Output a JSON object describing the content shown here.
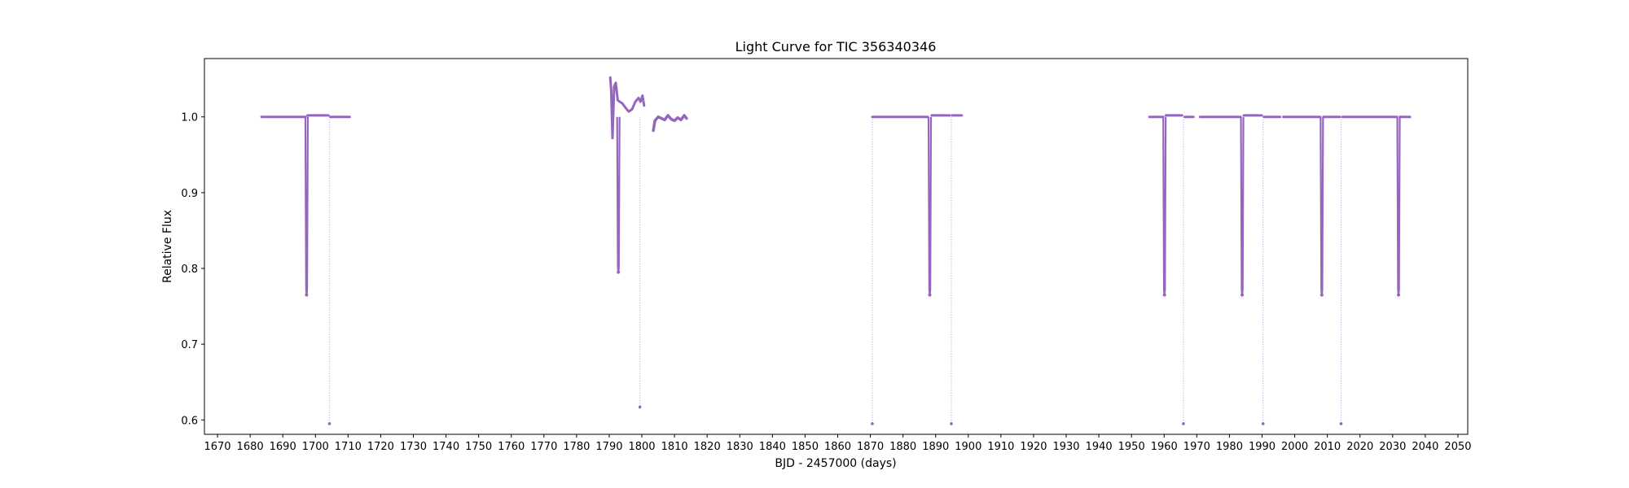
{
  "chart_data": {
    "type": "scatter",
    "title": "Light Curve for TIC 356340346",
    "xlabel": "BJD - 2457000 (days)",
    "ylabel": "Relative Flux",
    "xlim": [
      1666,
      2053
    ],
    "ylim": [
      0.581,
      1.077
    ],
    "xticks": [
      1670,
      1680,
      1690,
      1700,
      1710,
      1720,
      1730,
      1740,
      1750,
      1760,
      1770,
      1780,
      1790,
      1800,
      1810,
      1820,
      1830,
      1840,
      1850,
      1860,
      1870,
      1880,
      1890,
      1900,
      1910,
      1920,
      1930,
      1940,
      1950,
      1960,
      1970,
      1980,
      1990,
      2000,
      2010,
      2020,
      2030,
      2040,
      2050
    ],
    "yticks": [
      0.6,
      0.7,
      0.8,
      0.9,
      1.0
    ],
    "ytick_labels": [
      "0.6",
      "0.7",
      "0.8",
      "0.9",
      "1.0"
    ],
    "grid": false,
    "color": "#9467bd",
    "baseline_segments": [
      {
        "x": [
          1683.5,
          1697.0
        ],
        "y": 1.0
      },
      {
        "x": [
          1697.6,
          1704.0
        ],
        "y": 1.002
      },
      {
        "x": [
          1704.6,
          1710.5
        ],
        "y": 1.0
      },
      {
        "x": [
          1870.6,
          1887.6
        ],
        "y": 1.0
      },
      {
        "x": [
          1888.8,
          1894.5
        ],
        "y": 1.002
      },
      {
        "x": [
          1895.1,
          1898.0
        ],
        "y": 1.002
      },
      {
        "x": [
          1955.5,
          1959.7
        ],
        "y": 1.0
      },
      {
        "x": [
          1960.5,
          1965.5
        ],
        "y": 1.002
      },
      {
        "x": [
          1966.3,
          1969.0
        ],
        "y": 1.0
      },
      {
        "x": [
          1971.0,
          1983.5
        ],
        "y": 1.0
      },
      {
        "x": [
          1984.4,
          1990.0
        ],
        "y": 1.002
      },
      {
        "x": [
          1990.6,
          1995.5
        ],
        "y": 1.0
      },
      {
        "x": [
          1996.5,
          2007.8
        ],
        "y": 1.0
      },
      {
        "x": [
          2008.8,
          2013.8
        ],
        "y": 1.0
      },
      {
        "x": [
          2014.6,
          2031.3
        ],
        "y": 1.0
      },
      {
        "x": [
          2032.2,
          2035.3
        ],
        "y": 1.0
      }
    ],
    "variable_segment": {
      "x": [
        1790.3,
        1790.6,
        1791.0,
        1791.5,
        1792.0,
        1792.6,
        1793.2,
        1794.0,
        1795.0,
        1796.0,
        1797.0,
        1798.0,
        1799.0,
        1799.6,
        1800.2,
        1800.7
      ],
      "y": [
        1.052,
        1.035,
        0.972,
        1.04,
        1.045,
        1.022,
        1.02,
        1.018,
        1.012,
        1.007,
        1.01,
        1.02,
        1.025,
        1.02,
        1.028,
        1.015
      ]
    },
    "post_segment": {
      "x": [
        1803.5,
        1804.0,
        1805.0,
        1806.0,
        1807.0,
        1808.0,
        1809.0,
        1810.0,
        1811.0,
        1812.0,
        1813.0,
        1813.7
      ],
      "y": [
        0.982,
        0.995,
        1.0,
        0.998,
        0.996,
        1.002,
        0.997,
        0.995,
        0.999,
        0.996,
        1.002,
        0.998
      ]
    },
    "eclipses": [
      {
        "t": 1697.3,
        "depth": 0.765,
        "width": 0.6,
        "style": "dense"
      },
      {
        "t": 1704.3,
        "depth": 0.595,
        "width": 0.3,
        "style": "sparse"
      },
      {
        "t": 1792.8,
        "depth": 0.795,
        "width": 0.5,
        "style": "dense"
      },
      {
        "t": 1799.4,
        "depth": 0.617,
        "width": 0.3,
        "style": "sparse"
      },
      {
        "t": 1870.6,
        "depth": 0.595,
        "width": 0.3,
        "style": "sparse"
      },
      {
        "t": 1888.2,
        "depth": 0.765,
        "width": 0.6,
        "style": "dense"
      },
      {
        "t": 1894.8,
        "depth": 0.595,
        "width": 0.3,
        "style": "sparse"
      },
      {
        "t": 1960.1,
        "depth": 0.765,
        "width": 0.6,
        "style": "dense"
      },
      {
        "t": 1965.9,
        "depth": 0.595,
        "width": 0.3,
        "style": "sparse"
      },
      {
        "t": 1983.9,
        "depth": 0.765,
        "width": 0.6,
        "style": "dense"
      },
      {
        "t": 1990.3,
        "depth": 0.595,
        "width": 0.3,
        "style": "sparse"
      },
      {
        "t": 2008.3,
        "depth": 0.765,
        "width": 0.6,
        "style": "dense"
      },
      {
        "t": 2014.2,
        "depth": 0.595,
        "width": 0.3,
        "style": "sparse"
      },
      {
        "t": 2031.8,
        "depth": 0.765,
        "width": 0.6,
        "style": "dense"
      }
    ]
  }
}
